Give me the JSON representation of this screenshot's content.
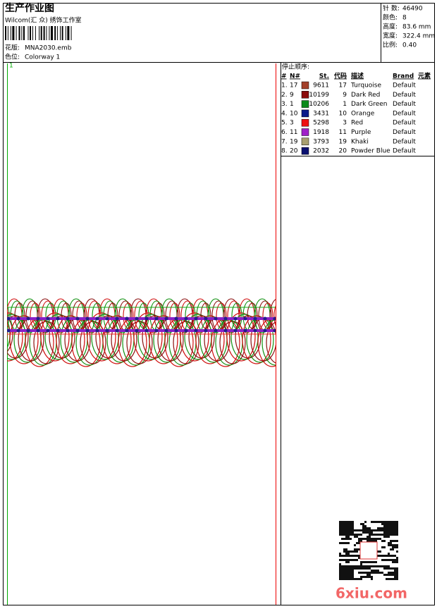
{
  "header": {
    "title": "生产作业图",
    "studio": "Wilcom(汇 众) 绣饰工作室",
    "design_label": "花版:",
    "design": "MNA2030.emb",
    "colorway_label": "色位:",
    "colorway": "Colorway 1"
  },
  "summary": [
    {
      "label": "针 数:",
      "value": "46490"
    },
    {
      "label": "颜色:",
      "value": "8"
    },
    {
      "label": "高度:",
      "value": "83.6 mm"
    },
    {
      "label": "宽度:",
      "value": "322.4 mm"
    },
    {
      "label": "比例:",
      "value": "0.40"
    }
  ],
  "stop_sequence": {
    "title": "停止顺序:",
    "columns": [
      "#",
      "N#",
      "St.",
      "代码",
      "描述",
      "Brand",
      "元素"
    ],
    "rows": [
      {
        "index": "1.",
        "needle": "17",
        "stitches": "9611",
        "code": "17",
        "color": "#a3402a",
        "description": "Turquoise",
        "brand": "Default"
      },
      {
        "index": "2.",
        "needle": "9",
        "stitches": "10199",
        "code": "9",
        "color": "#8b0a0a",
        "description": "Dark Red",
        "brand": "Default"
      },
      {
        "index": "3.",
        "needle": "1",
        "stitches": "10206",
        "code": "1",
        "color": "#0a8a1a",
        "description": "Dark Green",
        "brand": "Default"
      },
      {
        "index": "4.",
        "needle": "10",
        "stitches": "3431",
        "code": "10",
        "color": "#0a1a8a",
        "description": "Orange",
        "brand": "Default"
      },
      {
        "index": "5.",
        "needle": "3",
        "stitches": "5298",
        "code": "3",
        "color": "#ee1111",
        "description": "Red",
        "brand": "Default"
      },
      {
        "index": "6.",
        "needle": "11",
        "stitches": "1918",
        "code": "11",
        "color": "#a020c8",
        "description": "Purple",
        "brand": "Default"
      },
      {
        "index": "7.",
        "needle": "19",
        "stitches": "3793",
        "code": "19",
        "color": "#a8a070",
        "description": "Khaki",
        "brand": "Default"
      },
      {
        "index": "8.",
        "needle": "20",
        "stitches": "2032",
        "code": "20",
        "color": "#0a1070",
        "description": "Powder Blue",
        "brand": "Default"
      }
    ]
  },
  "canvas": {
    "marker": "1"
  },
  "watermark": "6xiu.com"
}
